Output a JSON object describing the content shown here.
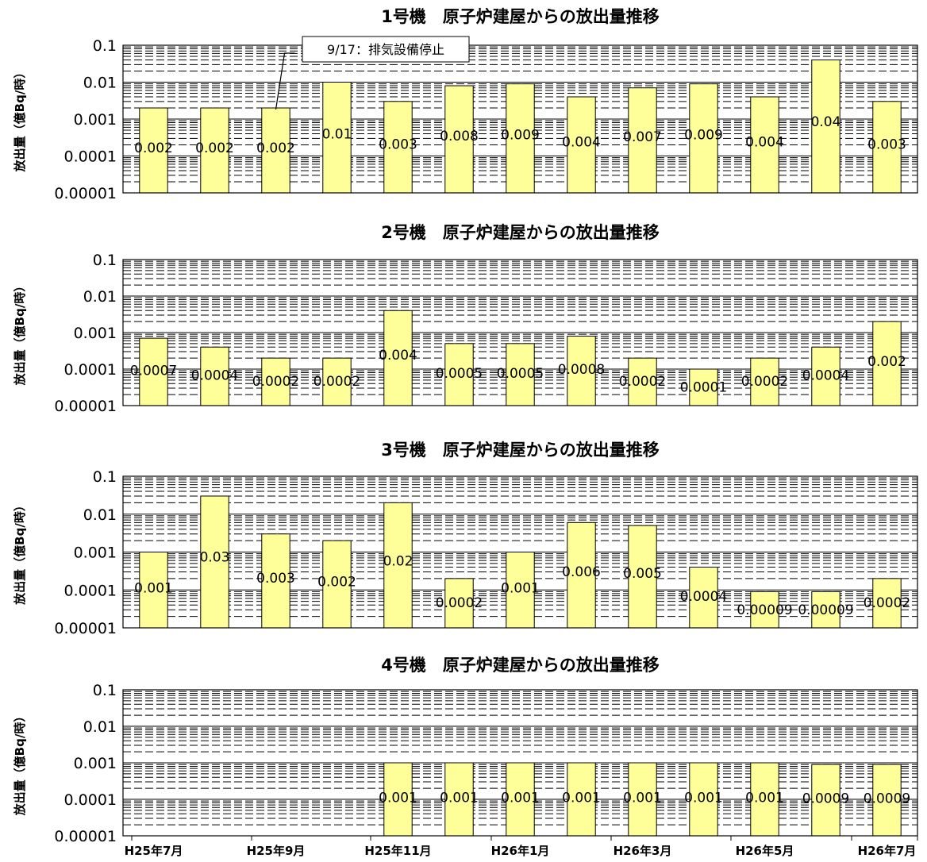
{
  "chart_data": [
    {
      "type": "bar",
      "title": "1号機　原子炉建屋からの放出量推移",
      "ylabel": "放出量（億Bq/時）",
      "scale": "log",
      "ylim": [
        1e-05,
        0.1
      ],
      "y_ticks": [
        "0.1",
        "0.01",
        "0.001",
        "0.0001",
        "0.00001"
      ],
      "grid": true,
      "bar_color": "#ffff99",
      "values": [
        0.002,
        0.002,
        0.002,
        0.01,
        0.003,
        0.008,
        0.009,
        0.004,
        0.007,
        0.009,
        0.004,
        0.04,
        0.003
      ],
      "labels": [
        "0.002",
        "0.002",
        "0.002",
        "0.01",
        "0.003",
        "0.008",
        "0.009",
        "0.004",
        "0.007",
        "0.009",
        "0.004",
        "0.04",
        "0.003"
      ],
      "annotation": {
        "text": "9/17：排気設備停止",
        "bar_index": 2
      }
    },
    {
      "type": "bar",
      "title": "2号機　原子炉建屋からの放出量推移",
      "ylabel": "放出量（億Bq/時）",
      "scale": "log",
      "ylim": [
        1e-05,
        0.1
      ],
      "y_ticks": [
        "0.1",
        "0.01",
        "0.001",
        "0.0001",
        "0.00001"
      ],
      "grid": true,
      "bar_color": "#ffff99",
      "values": [
        0.0007,
        0.0004,
        0.0002,
        0.0002,
        0.004,
        0.0005,
        0.0005,
        0.0008,
        0.0002,
        0.0001,
        0.0002,
        0.0004,
        0.002
      ],
      "labels": [
        "0.0007",
        "0.0004",
        "0.0002",
        "0.0002",
        "0.004",
        "0.0005",
        "0.0005",
        "0.0008",
        "0.0002",
        "0.0001",
        "0.0002",
        "0.0004",
        "0.002"
      ]
    },
    {
      "type": "bar",
      "title": "3号機　原子炉建屋からの放出量推移",
      "ylabel": "放出量（億Bq/時）",
      "scale": "log",
      "ylim": [
        1e-05,
        0.1
      ],
      "y_ticks": [
        "0.1",
        "0.01",
        "0.001",
        "0.0001",
        "0.00001"
      ],
      "grid": true,
      "bar_color": "#ffff99",
      "values": [
        0.001,
        0.03,
        0.003,
        0.002,
        0.02,
        0.0002,
        0.001,
        0.006,
        0.005,
        0.0004,
        9e-05,
        9e-05,
        0.0002
      ],
      "labels": [
        "0.001",
        "0.03",
        "0.003",
        "0.002",
        "0.02",
        "0.0002",
        "0.001",
        "0.006",
        "0.005",
        "0.0004",
        "0.00009",
        "0.00009",
        "0.0002"
      ]
    },
    {
      "type": "bar",
      "title": "4号機　原子炉建屋からの放出量推移",
      "ylabel": "放出量（億Bq/時）",
      "scale": "log",
      "ylim": [
        1e-05,
        0.1
      ],
      "y_ticks": [
        "0.1",
        "0.01",
        "0.001",
        "0.0001",
        "0.00001"
      ],
      "grid": true,
      "bar_color": "#ffff99",
      "values": [
        null,
        null,
        null,
        null,
        0.001,
        0.001,
        0.001,
        0.001,
        0.001,
        0.001,
        0.001,
        0.0009,
        0.0009
      ],
      "labels": [
        "",
        "",
        "",
        "",
        "0.001",
        "0.001",
        "0.001",
        "0.001",
        "0.001",
        "0.001",
        "0.001",
        "0.0009",
        "0.0009"
      ],
      "x_tick_labels": [
        "H25年7月",
        "H25年9月",
        "H25年11月",
        "H26年1月",
        "H26年3月",
        "H26年5月",
        "H26年7月"
      ],
      "x_tick_every": 2
    }
  ]
}
